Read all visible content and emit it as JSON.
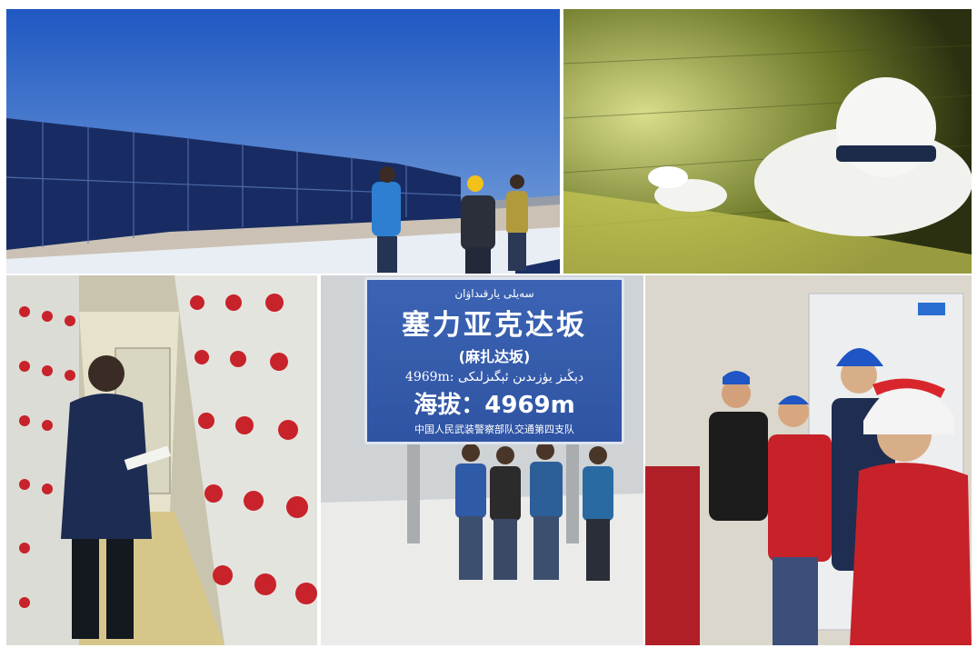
{
  "collage": {
    "photos": [
      {
        "id": "solar",
        "subject": "solar-panel-field"
      },
      {
        "id": "inspection",
        "subject": "worker-inspecting-tank"
      },
      {
        "id": "battery",
        "subject": "battery-room-inspection"
      },
      {
        "id": "pass",
        "subject": "mountain-pass-group-photo"
      },
      {
        "id": "helmets",
        "subject": "technicians-discussion"
      }
    ]
  },
  "sign": {
    "uyghur_top": "سەيلى يارقىداۋان",
    "chinese_name": "塞力亚克达坂",
    "chinese_alt_name": "(麻扎达坂)",
    "uyghur_line": "4969m: دېڭىز يۈزىدىن ئېگىزلىكى",
    "altitude": "海拔：4969m",
    "unit_line": "中国人民武装警察部队交通第四支队"
  },
  "colors": {
    "sky": "#2b63c6",
    "sign_blue": "#3459ab",
    "helmet_red": "#d8262c",
    "helmet_blue": "#1f55c4"
  }
}
